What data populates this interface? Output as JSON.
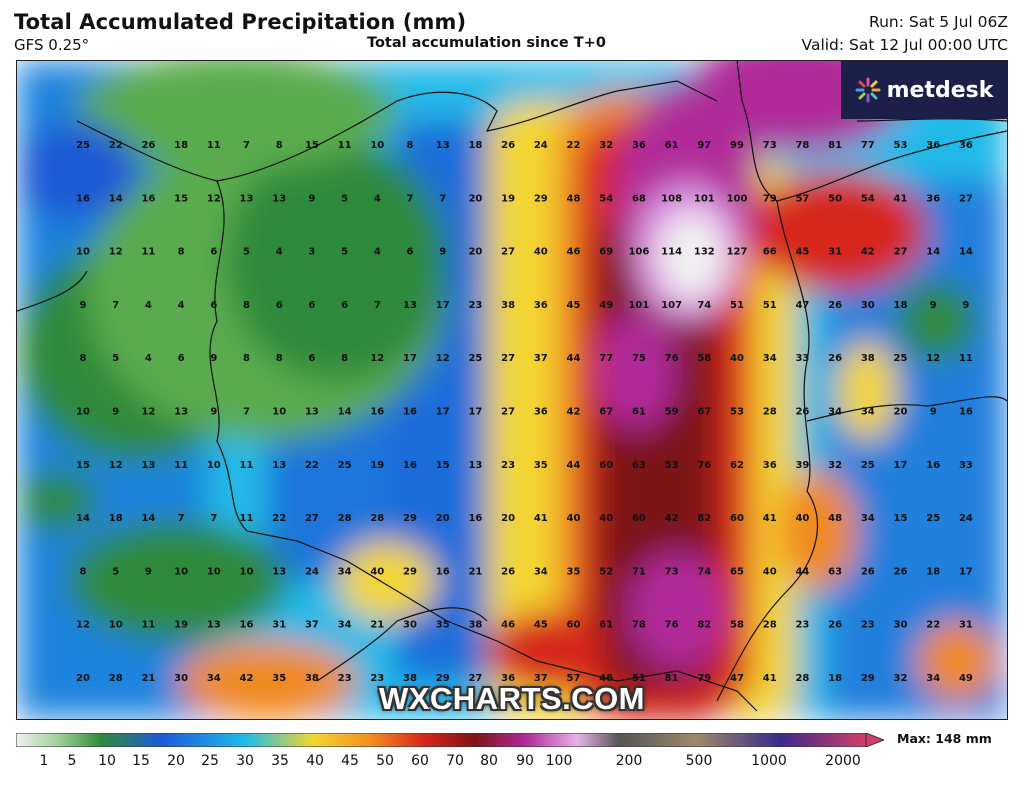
{
  "header": {
    "title": "Total Accumulated Precipitation (mm)",
    "model": "GFS 0.25°",
    "subtitle": "Total accumulation since T+0",
    "run": "Run: Sat 5 Jul 06Z",
    "valid": "Valid: Sat 12 Jul 00:00 UTC"
  },
  "brand": {
    "logo_text": "metdesk",
    "watermark": "WXCHARTS.COM"
  },
  "legend": {
    "max_label": "Max: 148 mm",
    "ticks": [
      "1",
      "5",
      "10",
      "15",
      "20",
      "25",
      "30",
      "35",
      "40",
      "45",
      "50",
      "60",
      "70",
      "80",
      "90",
      "100",
      "200",
      "500",
      "1000",
      "2000"
    ]
  },
  "colors": {
    "green_dark": "#2f8a3a",
    "green": "#5aab4e",
    "blue": "#1f5ad6",
    "cyan": "#21b9e8",
    "yellow": "#f3d631",
    "orange": "#f08a24",
    "red": "#d7261c",
    "darkred": "#7c1418",
    "magenta": "#b02b9a",
    "violet": "#d98ce0",
    "white": "#f1f1f1"
  },
  "grid_values": [
    [
      "25",
      "22",
      "26",
      "18",
      "11",
      "7",
      "8",
      "15",
      "11",
      "10",
      "8",
      "13",
      "18",
      "26",
      "24",
      "22",
      "32",
      "36",
      "61",
      "97",
      "99",
      "73",
      "78",
      "81",
      "77",
      "53",
      "36",
      "36"
    ],
    [
      "16",
      "14",
      "16",
      "15",
      "12",
      "13",
      "13",
      "9",
      "5",
      "4",
      "7",
      "7",
      "20",
      "19",
      "29",
      "48",
      "54",
      "68",
      "108",
      "101",
      "100",
      "79",
      "57",
      "50",
      "54",
      "41",
      "36",
      "27"
    ],
    [
      "10",
      "12",
      "11",
      "8",
      "6",
      "5",
      "4",
      "3",
      "5",
      "4",
      "6",
      "9",
      "20",
      "27",
      "40",
      "46",
      "69",
      "106",
      "114",
      "132",
      "127",
      "66",
      "45",
      "31",
      "42",
      "27",
      "14",
      "14"
    ],
    [
      "9",
      "7",
      "4",
      "4",
      "6",
      "8",
      "6",
      "6",
      "6",
      "7",
      "13",
      "17",
      "23",
      "38",
      "36",
      "45",
      "49",
      "101",
      "107",
      "74",
      "51",
      "51",
      "47",
      "26",
      "30",
      "18",
      "9",
      "9"
    ],
    [
      "8",
      "5",
      "4",
      "6",
      "9",
      "8",
      "8",
      "6",
      "8",
      "12",
      "17",
      "12",
      "25",
      "27",
      "37",
      "44",
      "77",
      "75",
      "76",
      "58",
      "40",
      "34",
      "33",
      "26",
      "38",
      "25",
      "12",
      "11"
    ],
    [
      "10",
      "9",
      "12",
      "13",
      "9",
      "7",
      "10",
      "13",
      "14",
      "16",
      "16",
      "17",
      "17",
      "27",
      "36",
      "42",
      "67",
      "61",
      "59",
      "67",
      "53",
      "28",
      "26",
      "34",
      "34",
      "20",
      "9",
      "16"
    ],
    [
      "15",
      "12",
      "13",
      "11",
      "10",
      "11",
      "13",
      "22",
      "25",
      "19",
      "16",
      "15",
      "13",
      "23",
      "35",
      "44",
      "60",
      "63",
      "53",
      "76",
      "62",
      "36",
      "39",
      "32",
      "25",
      "17",
      "16",
      "33"
    ],
    [
      "14",
      "18",
      "14",
      "7",
      "7",
      "11",
      "22",
      "27",
      "28",
      "28",
      "29",
      "20",
      "16",
      "20",
      "41",
      "40",
      "40",
      "60",
      "42",
      "82",
      "60",
      "41",
      "40",
      "48",
      "34",
      "15",
      "25",
      "24"
    ],
    [
      "8",
      "5",
      "9",
      "10",
      "10",
      "10",
      "13",
      "24",
      "34",
      "40",
      "29",
      "16",
      "21",
      "26",
      "34",
      "35",
      "52",
      "71",
      "73",
      "74",
      "65",
      "40",
      "44",
      "63",
      "26",
      "26",
      "18",
      "17"
    ],
    [
      "12",
      "10",
      "11",
      "19",
      "13",
      "16",
      "31",
      "37",
      "34",
      "21",
      "30",
      "35",
      "38",
      "46",
      "45",
      "60",
      "61",
      "78",
      "76",
      "82",
      "58",
      "28",
      "23",
      "26",
      "23",
      "30",
      "22",
      "31"
    ],
    [
      "20",
      "28",
      "21",
      "30",
      "34",
      "42",
      "35",
      "38",
      "23",
      "23",
      "38",
      "29",
      "27",
      "36",
      "37",
      "57",
      "46",
      "51",
      "81",
      "79",
      "47",
      "41",
      "28",
      "18",
      "29",
      "32",
      "34",
      "49"
    ]
  ]
}
